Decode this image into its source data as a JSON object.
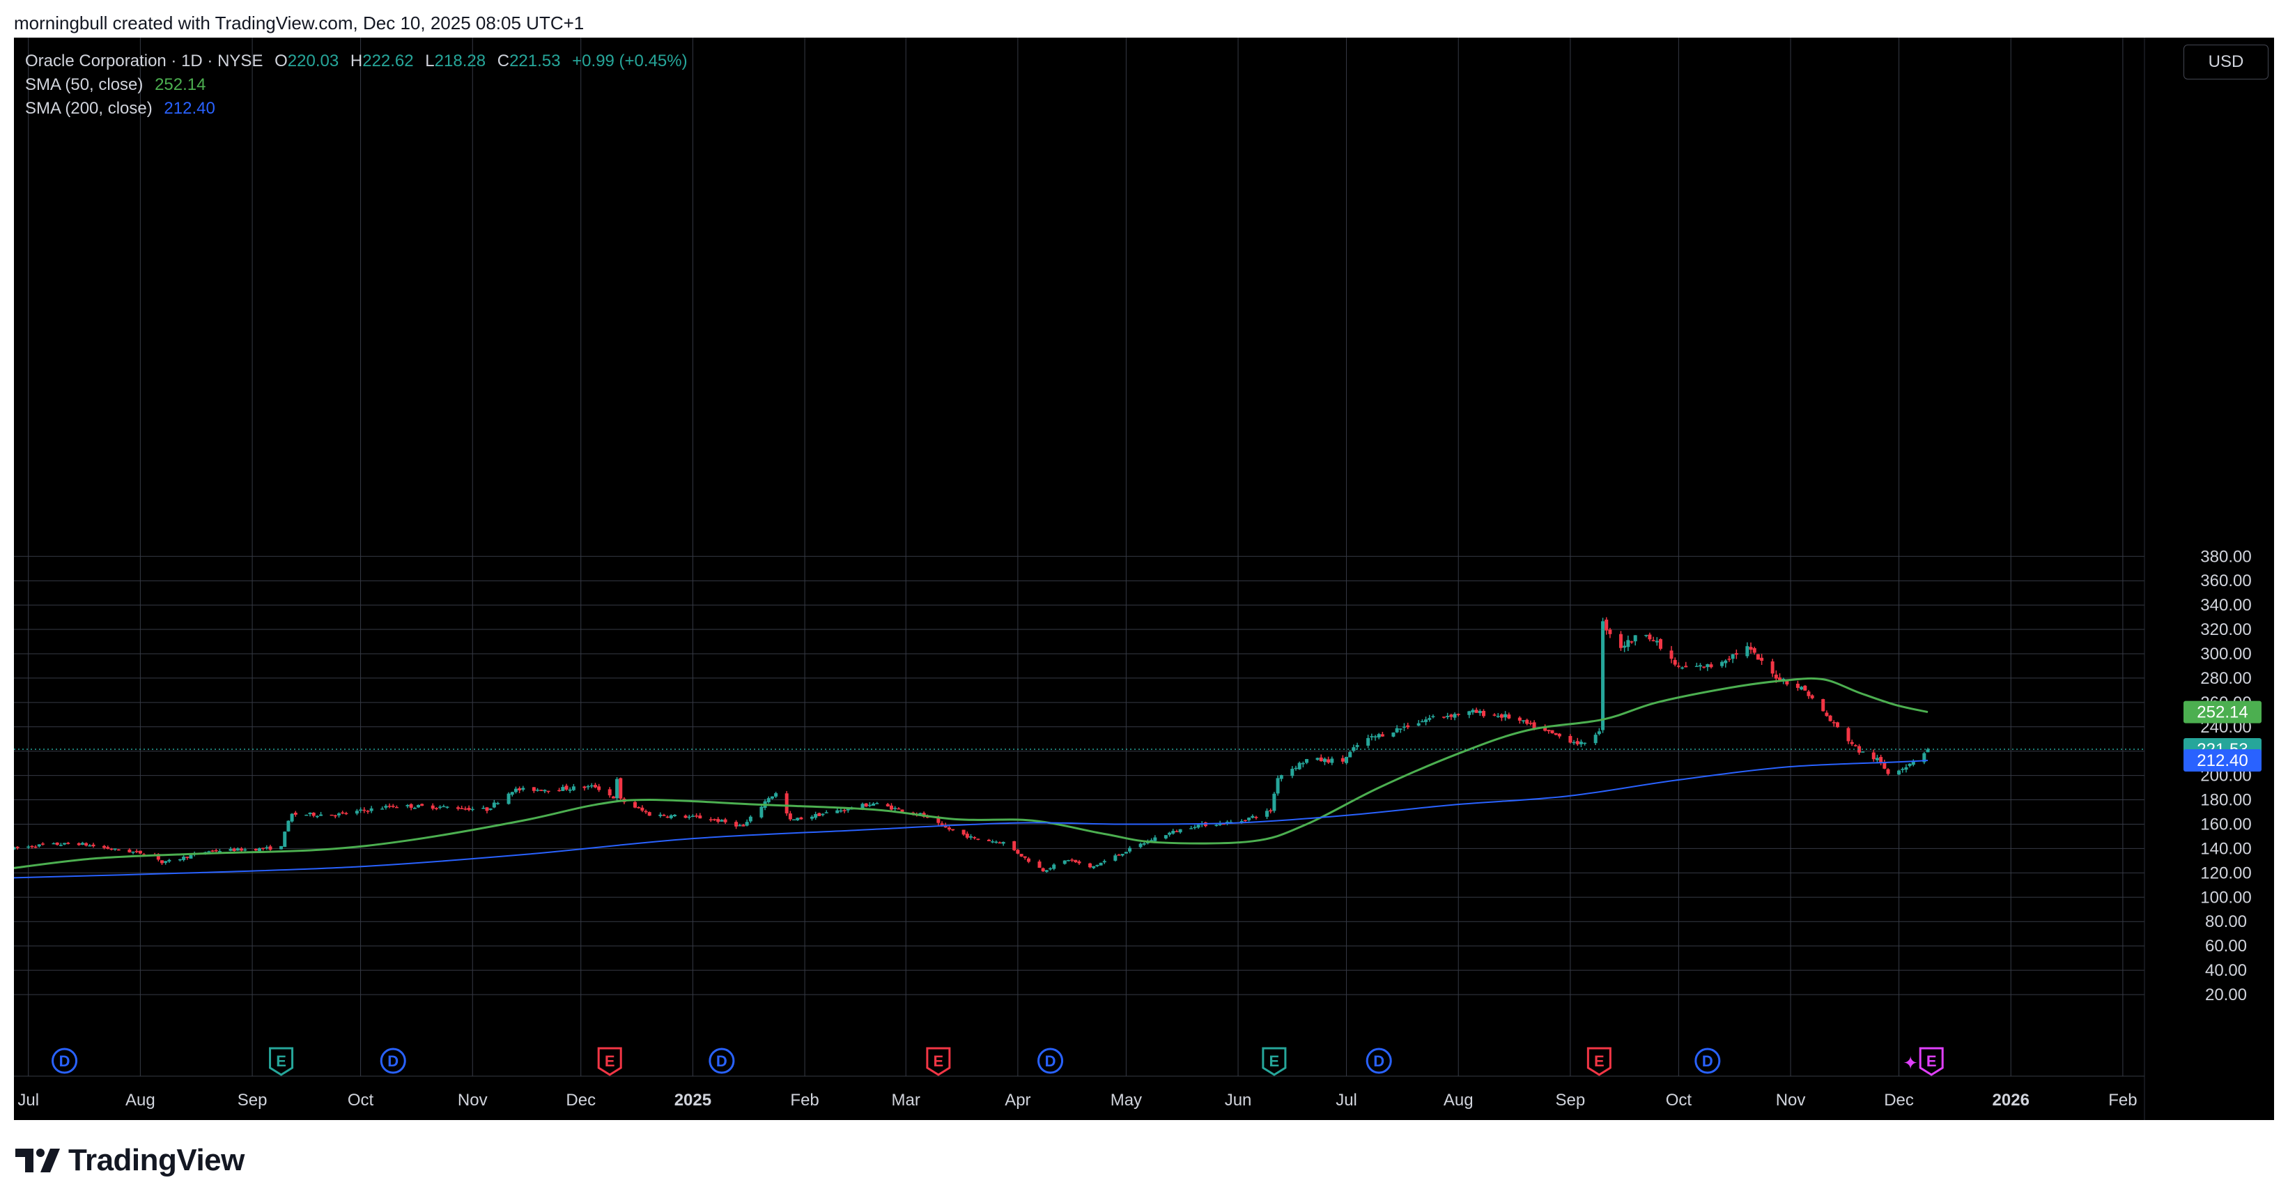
{
  "header": {
    "caption": "morningbull created with TradingView.com, Dec 10, 2025 08:05 UTC+1"
  },
  "legend": {
    "symbol": "Oracle Corporation · 1D · NYSE",
    "o_label": "O",
    "o_value": "220.03",
    "h_label": "H",
    "h_value": "222.62",
    "l_label": "L",
    "l_value": "218.28",
    "c_label": "C",
    "c_value": "221.53",
    "change": "+0.99 (+0.45%)",
    "sma50_label": "SMA (50, close)",
    "sma50_value": "252.14",
    "sma200_label": "SMA (200, close)",
    "sma200_value": "212.40"
  },
  "currency": "USD",
  "brand": {
    "name": "TradingView"
  },
  "colors": {
    "up": "#26a69a",
    "down": "#f23645",
    "sma50": "#4caf50",
    "sma200": "#2962ff",
    "dividend": "#2962ff",
    "earnings_past": "#f23645",
    "earnings_beat": "#26a69a",
    "earnings_upcoming": "#e040fb",
    "grid": "#363a45",
    "background": "#000000"
  },
  "chart_data": {
    "type": "candlestick",
    "title": "Oracle Corporation · 1D · NYSE",
    "ylim": [
      10,
      392
    ],
    "y_ticks": [
      20,
      40,
      60,
      80,
      100,
      120,
      140,
      160,
      180,
      200,
      220,
      240,
      260,
      280,
      300,
      320,
      340,
      360,
      380
    ],
    "y_tick_labels": [
      "20.00",
      "40.00",
      "60.00",
      "80.00",
      "100.00",
      "120.00",
      "140.00",
      "160.00",
      "180.00",
      "200.00",
      "220.00",
      "240.00",
      "260.00",
      "280.00",
      "300.00",
      "320.00",
      "340.00",
      "360.00",
      "380.00"
    ],
    "x_labels": [
      {
        "label": "Jul",
        "date": "2024-07-01"
      },
      {
        "label": "Aug",
        "date": "2024-08-01"
      },
      {
        "label": "Sep",
        "date": "2024-09-01"
      },
      {
        "label": "Oct",
        "date": "2024-10-01"
      },
      {
        "label": "Nov",
        "date": "2024-11-01"
      },
      {
        "label": "Dec",
        "date": "2024-12-01"
      },
      {
        "label": "2025",
        "date": "2025-01-01",
        "bold": true
      },
      {
        "label": "Feb",
        "date": "2025-02-01"
      },
      {
        "label": "Mar",
        "date": "2025-03-01"
      },
      {
        "label": "Apr",
        "date": "2025-04-01"
      },
      {
        "label": "May",
        "date": "2025-05-01"
      },
      {
        "label": "Jun",
        "date": "2025-06-01"
      },
      {
        "label": "Jul",
        "date": "2025-07-01"
      },
      {
        "label": "Aug",
        "date": "2025-08-01"
      },
      {
        "label": "Sep",
        "date": "2025-09-01"
      },
      {
        "label": "Oct",
        "date": "2025-10-01"
      },
      {
        "label": "Nov",
        "date": "2025-11-01"
      },
      {
        "label": "Dec",
        "date": "2025-12-01"
      },
      {
        "label": "2026",
        "date": "2026-01-01",
        "bold": true
      },
      {
        "label": "Feb",
        "date": "2026-02-01"
      }
    ],
    "x_range": [
      "2024-06-27",
      "2026-02-07"
    ],
    "price_path": [
      [
        "2024-06-27",
        140
      ],
      [
        "2024-07-05",
        143
      ],
      [
        "2024-07-15",
        144
      ],
      [
        "2024-07-25",
        139
      ],
      [
        "2024-08-05",
        135
      ],
      [
        "2024-08-07",
        128
      ],
      [
        "2024-08-20",
        138
      ],
      [
        "2024-09-05",
        140
      ],
      [
        "2024-09-09",
        141
      ],
      [
        "2024-09-10",
        155
      ],
      [
        "2024-09-12",
        168
      ],
      [
        "2024-09-25",
        168
      ],
      [
        "2024-10-10",
        175
      ],
      [
        "2024-10-25",
        174
      ],
      [
        "2024-11-05",
        172
      ],
      [
        "2024-11-12",
        188
      ],
      [
        "2024-11-25",
        189
      ],
      [
        "2024-12-05",
        191
      ],
      [
        "2024-12-10",
        182
      ],
      [
        "2024-12-11",
        196
      ],
      [
        "2024-12-12",
        180
      ],
      [
        "2024-12-20",
        168
      ],
      [
        "2025-01-05",
        165
      ],
      [
        "2025-01-15",
        158
      ],
      [
        "2025-01-22",
        182
      ],
      [
        "2025-01-24",
        185
      ],
      [
        "2025-01-28",
        163
      ],
      [
        "2025-02-10",
        171
      ],
      [
        "2025-02-20",
        177
      ],
      [
        "2025-03-05",
        168
      ],
      [
        "2025-03-11",
        158
      ],
      [
        "2025-03-20",
        148
      ],
      [
        "2025-03-28",
        145
      ],
      [
        "2025-04-03",
        132
      ],
      [
        "2025-04-08",
        122
      ],
      [
        "2025-04-15",
        131
      ],
      [
        "2025-04-21",
        124
      ],
      [
        "2025-05-01",
        138
      ],
      [
        "2025-05-10",
        150
      ],
      [
        "2025-05-20",
        159
      ],
      [
        "2025-06-01",
        162
      ],
      [
        "2025-06-10",
        171
      ],
      [
        "2025-06-12",
        199
      ],
      [
        "2025-06-20",
        213
      ],
      [
        "2025-06-30",
        212
      ],
      [
        "2025-07-05",
        228
      ],
      [
        "2025-07-15",
        238
      ],
      [
        "2025-07-25",
        248
      ],
      [
        "2025-08-05",
        252
      ],
      [
        "2025-08-15",
        248
      ],
      [
        "2025-08-25",
        236
      ],
      [
        "2025-09-05",
        225
      ],
      [
        "2025-09-09",
        238
      ],
      [
        "2025-09-10",
        325
      ],
      [
        "2025-09-15",
        306
      ],
      [
        "2025-09-22",
        318
      ],
      [
        "2025-10-01",
        288
      ],
      [
        "2025-10-10",
        290
      ],
      [
        "2025-10-20",
        305
      ],
      [
        "2025-10-27",
        283
      ],
      [
        "2025-11-05",
        270
      ],
      [
        "2025-11-12",
        245
      ],
      [
        "2025-11-20",
        220
      ],
      [
        "2025-11-25",
        213
      ],
      [
        "2025-11-28",
        202
      ],
      [
        "2025-12-03",
        208
      ],
      [
        "2025-12-09",
        221.53
      ]
    ],
    "series": [
      {
        "name": "SMA (50, close)",
        "last": 252.14,
        "points": [
          [
            "2024-06-27",
            124
          ],
          [
            "2024-07-20",
            132
          ],
          [
            "2024-08-20",
            136
          ],
          [
            "2024-09-20",
            139
          ],
          [
            "2024-10-15",
            147
          ],
          [
            "2024-11-15",
            163
          ],
          [
            "2024-12-05",
            176
          ],
          [
            "2024-12-20",
            180
          ],
          [
            "2025-01-20",
            176
          ],
          [
            "2025-02-20",
            172
          ],
          [
            "2025-03-15",
            164
          ],
          [
            "2025-04-05",
            163
          ],
          [
            "2025-04-25",
            152
          ],
          [
            "2025-05-10",
            145
          ],
          [
            "2025-06-05",
            146
          ],
          [
            "2025-06-20",
            160
          ],
          [
            "2025-07-10",
            190
          ],
          [
            "2025-08-01",
            218
          ],
          [
            "2025-08-20",
            237
          ],
          [
            "2025-09-10",
            246
          ],
          [
            "2025-09-25",
            260
          ],
          [
            "2025-10-15",
            272
          ],
          [
            "2025-10-30",
            278
          ],
          [
            "2025-11-10",
            279
          ],
          [
            "2025-11-20",
            268
          ],
          [
            "2025-11-30",
            258
          ],
          [
            "2025-12-09",
            252.14
          ]
        ]
      },
      {
        "name": "SMA (200, close)",
        "last": 212.4,
        "points": [
          [
            "2024-06-27",
            116
          ],
          [
            "2024-08-15",
            120
          ],
          [
            "2024-09-30",
            125
          ],
          [
            "2024-11-15",
            135
          ],
          [
            "2024-12-31",
            148
          ],
          [
            "2025-02-15",
            155
          ],
          [
            "2025-03-31",
            161
          ],
          [
            "2025-04-30",
            160
          ],
          [
            "2025-05-31",
            161
          ],
          [
            "2025-06-30",
            167
          ],
          [
            "2025-07-31",
            176
          ],
          [
            "2025-08-31",
            183
          ],
          [
            "2025-09-30",
            196
          ],
          [
            "2025-10-31",
            207
          ],
          [
            "2025-11-30",
            211
          ],
          [
            "2025-12-09",
            212.4
          ]
        ]
      }
    ],
    "price_labels": [
      {
        "text": "252.14",
        "value": 252.14,
        "color": "#4caf50"
      },
      {
        "text": "221.53",
        "value": 221.53,
        "color": "#26a69a"
      },
      {
        "text": "212.40",
        "value": 212.4,
        "color": "#2962ff"
      }
    ],
    "current_price": 221.53,
    "events": [
      {
        "type": "D",
        "date": "2024-07-11"
      },
      {
        "type": "E",
        "date": "2024-09-09",
        "result": "beat"
      },
      {
        "type": "D",
        "date": "2024-10-10"
      },
      {
        "type": "E",
        "date": "2024-12-09",
        "result": "miss"
      },
      {
        "type": "D",
        "date": "2025-01-09"
      },
      {
        "type": "E",
        "date": "2025-03-10",
        "result": "miss"
      },
      {
        "type": "D",
        "date": "2025-04-10"
      },
      {
        "type": "E",
        "date": "2025-06-11",
        "result": "beat"
      },
      {
        "type": "D",
        "date": "2025-07-10"
      },
      {
        "type": "E",
        "date": "2025-09-09",
        "result": "miss"
      },
      {
        "type": "D",
        "date": "2025-10-09"
      },
      {
        "type": "E",
        "date": "2025-12-10",
        "result": "upcoming"
      }
    ],
    "grid": true
  }
}
